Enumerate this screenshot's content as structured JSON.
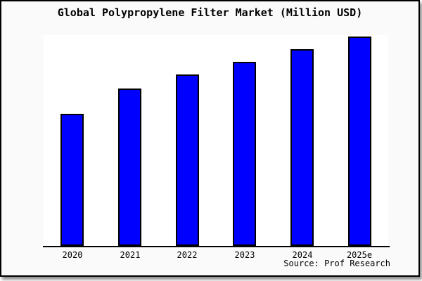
{
  "colors": {
    "page_background": "#ffffff",
    "chart_background": "#fafafa",
    "plot_background": "#ffffff",
    "bar_fill": "#0000ff",
    "bar_border": "#000000",
    "axis": "#000000",
    "text": "#000000"
  },
  "chart_data": {
    "type": "bar",
    "title": "Global Polypropylene Filter Market (Million USD)",
    "categories": [
      "2020",
      "2021",
      "2022",
      "2023",
      "2024",
      "2025e"
    ],
    "values": [
      63,
      75,
      82,
      88,
      94,
      100
    ],
    "value_scale": "relative-percent-of-2025e (no y-axis tick labels shown)",
    "ylim": [
      0,
      100
    ],
    "xlabel": "",
    "ylabel": "",
    "grid": false,
    "legend": "none",
    "y_axis_visible": false,
    "source_note": "Source: Prof Research"
  }
}
